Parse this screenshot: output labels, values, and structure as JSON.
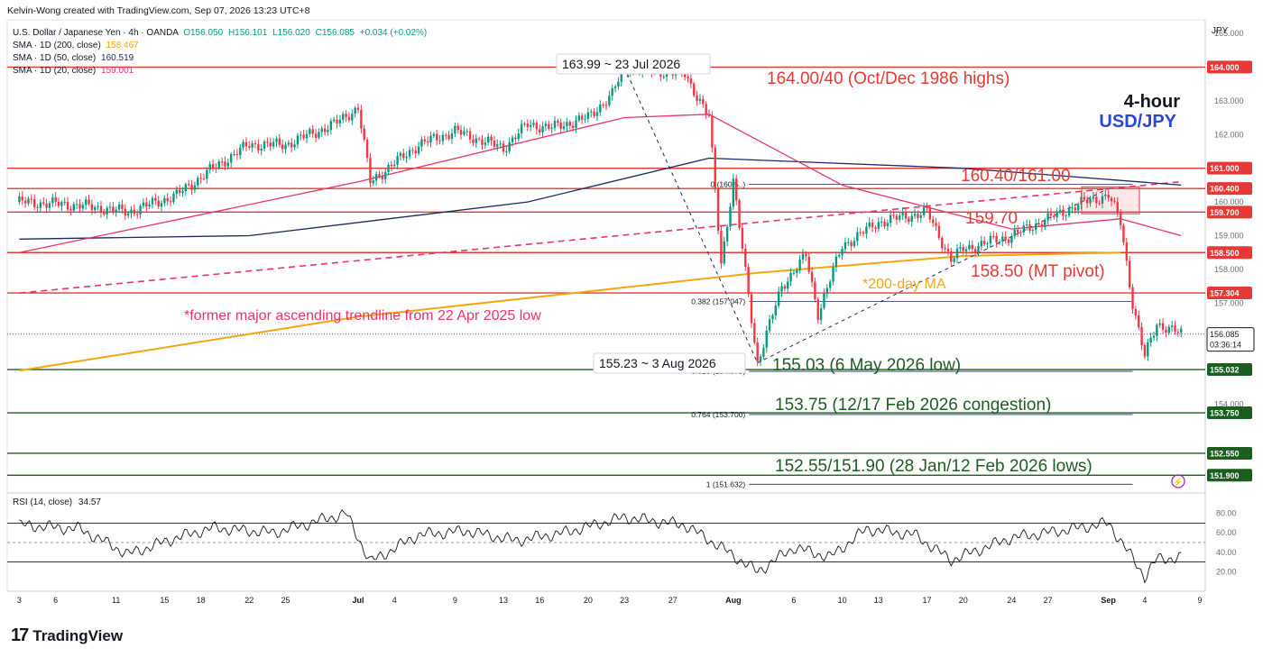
{
  "header": {
    "credit": "Kelvin-Wong created with TradingView.com, Sep 07, 2026 13:23 UTC+8",
    "symbol_line": "U.S. Dollar / Japanese Yen · 4h · OANDA",
    "ohlc": {
      "o": "O156.050",
      "h": "H156.101",
      "l": "L156.020",
      "c": "C156.085",
      "chg": "+0.034 (+0.02%)"
    },
    "sma200": {
      "label": "SMA · 1D (200, close)",
      "value": "158.467"
    },
    "sma50": {
      "label": "SMA · 1D (50, close)",
      "value": "160.519"
    },
    "sma20": {
      "label": "SMA · 1D (20, close)",
      "value": "159.001"
    },
    "currency": "JPY",
    "timeframe": "4-hour",
    "pair": "USD/JPY"
  },
  "rsi": {
    "label": "RSI (14, close)",
    "value": "34.57"
  },
  "brand": {
    "mark": "17",
    "word": "TradingView"
  },
  "colors": {
    "up": "#089981",
    "down": "#f23645",
    "sma200": "#f5a60f",
    "sma50": "#1a2b63",
    "sma20": "#e8336b",
    "resistance": "#e53935",
    "support": "#1b5e20",
    "annot_red": "#e53935",
    "annot_green": "#1b5e20"
  },
  "chart_data": {
    "type": "candlestick",
    "price_ylim": [
      151.4,
      165.4
    ],
    "price_ticks": [
      152.0,
      153.0,
      154.0,
      155.0,
      156.0,
      157.0,
      158.0,
      159.0,
      160.0,
      161.0,
      162.0,
      163.0,
      164.0,
      165.0
    ],
    "price_tick_labels": [
      "",
      "",
      "154.000",
      "",
      "",
      "157.000",
      "158.000",
      "159.000",
      "160.000",
      "",
      "162.000",
      "163.000",
      "",
      "165.000"
    ],
    "x_labels": [
      "3",
      "6",
      "11",
      "15",
      "18",
      "22",
      "25",
      "Jul",
      "4",
      "9",
      "13",
      "16",
      "20",
      "23",
      "27",
      "Aug",
      "6",
      "10",
      "13",
      "17",
      "20",
      "24",
      "27",
      "Sep",
      "4",
      "9"
    ],
    "close_path": [
      [
        "2026-06-03",
        160.0
      ],
      [
        "2026-06-08",
        159.9
      ],
      [
        "2026-06-12",
        159.7
      ],
      [
        "2026-06-16",
        160.2
      ],
      [
        "2026-06-19",
        161.0
      ],
      [
        "2026-06-22",
        161.7
      ],
      [
        "2026-06-25",
        161.7
      ],
      [
        "2026-06-29",
        162.3
      ],
      [
        "2026-07-01",
        162.8
      ],
      [
        "2026-07-02",
        160.6
      ],
      [
        "2026-07-06",
        161.7
      ],
      [
        "2026-07-09",
        162.1
      ],
      [
        "2026-07-13",
        161.6
      ],
      [
        "2026-07-15",
        162.3
      ],
      [
        "2026-07-17",
        162.2
      ],
      [
        "2026-07-20",
        162.5
      ],
      [
        "2026-07-22",
        163.2
      ],
      [
        "2026-07-23",
        163.99
      ],
      [
        "2026-07-28",
        163.8
      ],
      [
        "2026-07-30",
        162.5
      ],
      [
        "2026-07-31",
        158.2
      ],
      [
        "2026-08-01",
        160.6
      ],
      [
        "2026-08-03",
        155.23
      ],
      [
        "2026-08-05",
        157.5
      ],
      [
        "2026-08-07",
        158.4
      ],
      [
        "2026-08-08",
        156.7
      ],
      [
        "2026-08-10",
        158.7
      ],
      [
        "2026-08-13",
        159.4
      ],
      [
        "2026-08-17",
        159.7
      ],
      [
        "2026-08-19",
        158.3
      ],
      [
        "2026-08-20",
        158.6
      ],
      [
        "2026-08-24",
        159.0
      ],
      [
        "2026-08-27",
        159.5
      ],
      [
        "2026-08-30",
        160.0
      ],
      [
        "2026-09-01",
        160.2
      ],
      [
        "2026-09-02",
        159.4
      ],
      [
        "2026-09-03",
        157.0
      ],
      [
        "2026-09-04",
        155.4
      ],
      [
        "2026-09-05",
        156.4
      ],
      [
        "2026-09-07",
        156.085
      ]
    ],
    "sma200_path": [
      [
        "2026-06-03",
        155.0
      ],
      [
        "2026-07-01",
        156.6
      ],
      [
        "2026-08-03",
        157.9
      ],
      [
        "2026-08-20",
        158.4
      ],
      [
        "2026-09-02",
        158.5
      ]
    ],
    "sma50_path": [
      [
        "2026-06-03",
        158.9
      ],
      [
        "2026-06-22",
        159.0
      ],
      [
        "2026-07-15",
        160.0
      ],
      [
        "2026-07-30",
        161.3
      ],
      [
        "2026-08-20",
        161.0
      ],
      [
        "2026-09-07",
        160.5
      ]
    ],
    "sma20_path": [
      [
        "2026-06-03",
        158.5
      ],
      [
        "2026-07-01",
        160.6
      ],
      [
        "2026-07-23",
        162.5
      ],
      [
        "2026-07-30",
        162.6
      ],
      [
        "2026-08-10",
        160.5
      ],
      [
        "2026-08-24",
        159.2
      ],
      [
        "2026-09-02",
        159.5
      ],
      [
        "2026-09-07",
        159.0
      ]
    ],
    "trendline": {
      "from": [
        "2026-06-03",
        157.3
      ],
      "to": [
        "2026-09-07",
        160.6
      ]
    },
    "levels": [
      {
        "price": 164.0,
        "label": "164.000",
        "color": "#e53935"
      },
      {
        "price": 161.0,
        "label": "161.000",
        "color": "#e53935"
      },
      {
        "price": 160.4,
        "label": "160.400",
        "color": "#e53935"
      },
      {
        "price": 159.7,
        "label": "159.700",
        "color": "#e53935"
      },
      {
        "price": 158.5,
        "label": "158.500",
        "color": "#e53935"
      },
      {
        "price": 157.304,
        "label": "157.304",
        "color": "#e53935"
      },
      {
        "price": 155.032,
        "label": "155.032",
        "color": "#1b5e20"
      },
      {
        "price": 153.75,
        "label": "153.750",
        "color": "#1b5e20"
      },
      {
        "price": 152.55,
        "label": "152.550",
        "color": "#1b5e20"
      },
      {
        "price": 151.9,
        "label": "151.900",
        "color": "#1b5e20"
      }
    ],
    "current_price": {
      "label": "156.085",
      "countdown": "03:36:14"
    },
    "fib": [
      {
        "ratio_label": "0 (160.5..)",
        "price": 160.52
      },
      {
        "ratio_label": "0.382 (157.047)",
        "price": 157.047
      },
      {
        "ratio_label": "0.618 (154.979)",
        "price": 154.979
      },
      {
        "ratio_label": "0.764 (153.700)",
        "price": 153.7
      },
      {
        "ratio_label": "1 (151.632)",
        "price": 151.632
      }
    ],
    "annotations": {
      "high_callout": "163.99 ~ 23 Jul 2026",
      "low_callout": "155.23 ~ 3 Aug 2026",
      "level_164": "164.00/40 (Oct/Dec 1986 highs)",
      "level_161": "160.40/161.00",
      "level_1597": "159.70",
      "level_1585": "158.50 (MT pivot)",
      "ma200": "*200-day MA",
      "trendline": "*former major ascending trendline from 22 Apr 2025 low",
      "level_15503": "155.03 (6 May 2026 low)",
      "level_15375": "153.75 (12/17 Feb 2026 congestion)",
      "level_15255": "152.55/151.90 (28 Jan/12 Feb 2026 lows)"
    },
    "rsi_ylim": [
      0,
      100
    ],
    "rsi_ticks": [
      "80.00",
      "60.00",
      "40.00",
      "20.00"
    ],
    "rsi_bands": [
      70,
      50,
      30
    ],
    "rsi_path": [
      [
        "2026-06-03",
        68
      ],
      [
        "2026-06-08",
        64
      ],
      [
        "2026-06-12",
        38
      ],
      [
        "2026-06-16",
        55
      ],
      [
        "2026-06-19",
        65
      ],
      [
        "2026-06-24",
        60
      ],
      [
        "2026-06-30",
        80
      ],
      [
        "2026-07-02",
        30
      ],
      [
        "2026-07-06",
        58
      ],
      [
        "2026-07-10",
        62
      ],
      [
        "2026-07-14",
        52
      ],
      [
        "2026-07-18",
        60
      ],
      [
        "2026-07-23",
        76
      ],
      [
        "2026-07-28",
        68
      ],
      [
        "2026-07-31",
        45
      ],
      [
        "2026-08-03",
        20
      ],
      [
        "2026-08-06",
        45
      ],
      [
        "2026-08-09",
        35
      ],
      [
        "2026-08-12",
        64
      ],
      [
        "2026-08-16",
        58
      ],
      [
        "2026-08-19",
        32
      ],
      [
        "2026-08-24",
        55
      ],
      [
        "2026-08-28",
        62
      ],
      [
        "2026-09-01",
        70
      ],
      [
        "2026-09-02",
        52
      ],
      [
        "2026-09-04",
        15
      ],
      [
        "2026-09-05",
        33
      ],
      [
        "2026-09-07",
        34.57
      ]
    ]
  }
}
